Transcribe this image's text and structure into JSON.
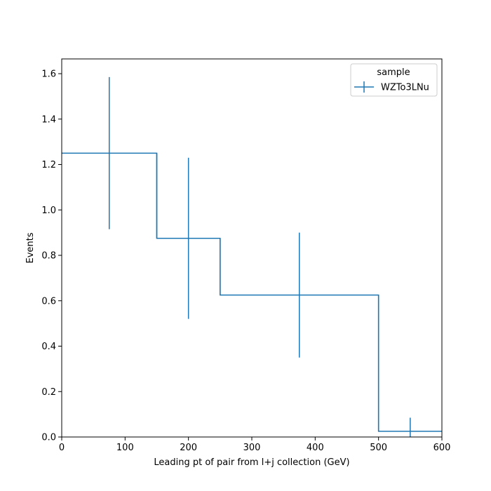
{
  "chart_data": {
    "type": "step-histogram",
    "xlabel": "Leading pt of pair from l+j collection (GeV)",
    "ylabel": "Events",
    "xlim": [
      0,
      600
    ],
    "ylim": [
      0,
      1.665
    ],
    "xticks": [
      "0",
      "100",
      "200",
      "300",
      "400",
      "500",
      "600"
    ],
    "yticks": [
      "0.0",
      "0.2",
      "0.4",
      "0.6",
      "0.8",
      "1.0",
      "1.2",
      "1.4",
      "1.6"
    ],
    "bin_edges": [
      0,
      150,
      250,
      500,
      600
    ],
    "series": [
      {
        "name": "WZTo3LNu",
        "color": "#1f77b4",
        "values": [
          1.25,
          0.875,
          0.625,
          0.025
        ],
        "errors": [
          0.335,
          0.355,
          0.275,
          0.06
        ]
      }
    ],
    "legend": {
      "title": "sample",
      "position": "top-right"
    },
    "grid": false
  }
}
